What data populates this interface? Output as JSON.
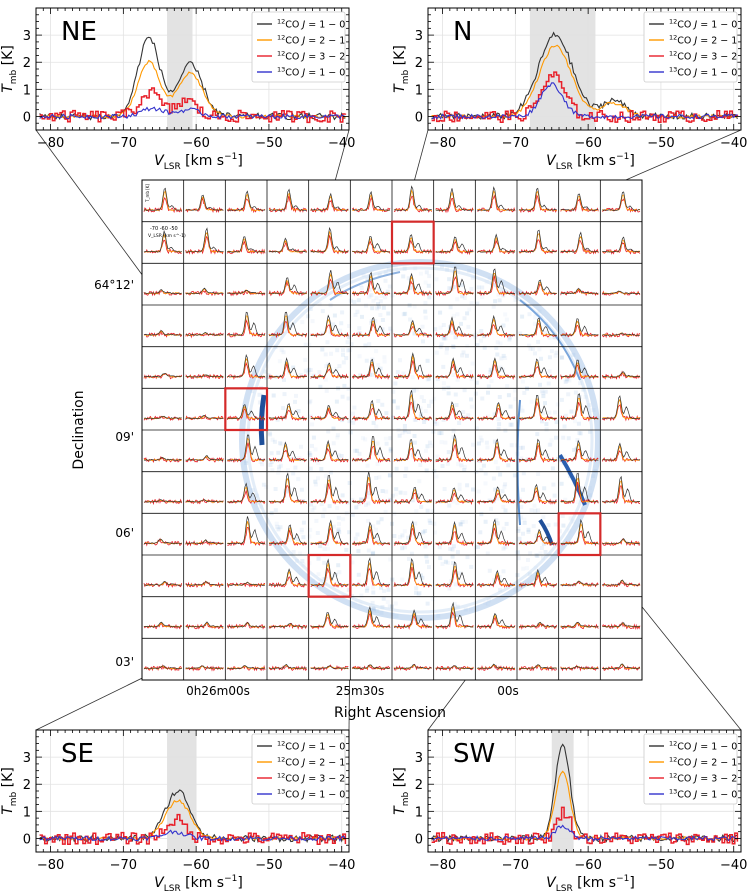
{
  "figure": {
    "xlabel": "Right Ascension",
    "ylabel": "Declination"
  },
  "chart_data": [
    {
      "type": "line",
      "panel": "NE",
      "title": "NE",
      "xlabel": "V_LSR [km s^-1]",
      "ylabel": "T_mb [K]",
      "xlim": [
        -82,
        -39
      ],
      "ylim": [
        -0.5,
        4.0
      ],
      "xticks": [
        -80,
        -70,
        -60,
        -50,
        -40
      ],
      "yticks": [
        0,
        1,
        2,
        3
      ],
      "shaded_range": [
        -64,
        -60.5
      ],
      "series": [
        {
          "name": "12CO J=1-0",
          "color": "#333333",
          "peaks": [
            {
              "v": -66.5,
              "t": 2.9,
              "w": 1.5
            },
            {
              "v": -60.8,
              "t": 1.9,
              "w": 1.7
            }
          ]
        },
        {
          "name": "12CO J=2-1",
          "color": "#ff9900",
          "peaks": [
            {
              "v": -66.5,
              "t": 2.0,
              "w": 1.5
            },
            {
              "v": -60.8,
              "t": 1.6,
              "w": 1.7
            }
          ]
        },
        {
          "name": "12CO J=3-2",
          "color": "#e8202a",
          "peaks": [
            {
              "v": -66.5,
              "t": 0.9,
              "w": 1.4
            },
            {
              "v": -61.5,
              "t": 0.6,
              "w": 1.3
            }
          ]
        },
        {
          "name": "13CO J=1-0",
          "color": "#3333cc",
          "peaks": [
            {
              "v": -66,
              "t": 0.3,
              "w": 1.5
            },
            {
              "v": -61,
              "t": 0.25,
              "w": 1.5
            }
          ]
        }
      ]
    },
    {
      "type": "line",
      "panel": "N",
      "title": "N",
      "xlabel": "V_LSR [km s^-1]",
      "ylabel": "T_mb [K]",
      "xlim": [
        -82,
        -39
      ],
      "ylim": [
        -0.5,
        4.0
      ],
      "xticks": [
        -80,
        -70,
        -60,
        -50,
        -40
      ],
      "yticks": [
        0,
        1,
        2,
        3
      ],
      "shaded_range": [
        -68,
        -59
      ],
      "series": [
        {
          "name": "12CO J=1-0",
          "color": "#333333",
          "peaks": [
            {
              "v": -64.5,
              "t": 3.0,
              "w": 2.3
            },
            {
              "v": -56.5,
              "t": 0.6,
              "w": 1.6
            }
          ]
        },
        {
          "name": "12CO J=2-1",
          "color": "#ff9900",
          "peaks": [
            {
              "v": -64.5,
              "t": 2.6,
              "w": 2.2
            },
            {
              "v": -56.5,
              "t": 0.5,
              "w": 1.6
            }
          ]
        },
        {
          "name": "12CO J=3-2",
          "color": "#e8202a",
          "peaks": [
            {
              "v": -65,
              "t": 1.5,
              "w": 1.6
            }
          ]
        },
        {
          "name": "13CO J=1-0",
          "color": "#3333cc",
          "peaks": [
            {
              "v": -65,
              "t": 1.2,
              "w": 1.5
            }
          ]
        }
      ]
    },
    {
      "type": "line",
      "panel": "SE",
      "title": "SE",
      "xlabel": "V_LSR [km s^-1]",
      "ylabel": "T_mb [K]",
      "xlim": [
        -82,
        -39
      ],
      "ylim": [
        -0.5,
        4.0
      ],
      "xticks": [
        -80,
        -70,
        -60,
        -50,
        -40
      ],
      "yticks": [
        0,
        1,
        2,
        3
      ],
      "shaded_range": [
        -64,
        -60
      ],
      "series": [
        {
          "name": "12CO J=1-0",
          "color": "#333333",
          "peaks": [
            {
              "v": -62.5,
              "t": 1.75,
              "w": 1.7
            }
          ]
        },
        {
          "name": "12CO J=2-1",
          "color": "#ff9900",
          "peaks": [
            {
              "v": -62.5,
              "t": 1.4,
              "w": 1.7
            }
          ]
        },
        {
          "name": "12CO J=3-2",
          "color": "#e8202a",
          "peaks": [
            {
              "v": -63,
              "t": 0.7,
              "w": 1.3
            }
          ]
        },
        {
          "name": "13CO J=1-0",
          "color": "#3333cc",
          "peaks": [
            {
              "v": -63,
              "t": 0.25,
              "w": 1.5
            }
          ]
        }
      ]
    },
    {
      "type": "line",
      "panel": "SW",
      "title": "SW",
      "xlabel": "V_LSR [km s^-1]",
      "ylabel": "T_mb [K]",
      "xlim": [
        -82,
        -39
      ],
      "ylim": [
        -0.5,
        4.0
      ],
      "xticks": [
        -80,
        -70,
        -60,
        -50,
        -40
      ],
      "yticks": [
        0,
        1,
        2,
        3
      ],
      "shaded_range": [
        -65,
        -62
      ],
      "series": [
        {
          "name": "12CO J=1-0",
          "color": "#333333",
          "peaks": [
            {
              "v": -63.5,
              "t": 3.5,
              "w": 1.0
            }
          ]
        },
        {
          "name": "12CO J=2-1",
          "color": "#ff9900",
          "peaks": [
            {
              "v": -63.5,
              "t": 2.5,
              "w": 1.0
            }
          ]
        },
        {
          "name": "12CO J=3-2",
          "color": "#e8202a",
          "peaks": [
            {
              "v": -63.5,
              "t": 1.0,
              "w": 0.9
            }
          ]
        },
        {
          "name": "13CO J=1-0",
          "color": "#3333cc",
          "peaks": [
            {
              "v": -63.5,
              "t": 0.45,
              "w": 1.0
            }
          ]
        }
      ]
    },
    {
      "type": "heatmap",
      "panel": "map",
      "description_grid": {
        "rows": 12,
        "cols": 12
      },
      "highlighted_cells": [
        {
          "label": "N",
          "row": 1,
          "col": 6
        },
        {
          "label": "NE",
          "row": 5,
          "col": 2
        },
        {
          "label": "SW",
          "row": 8,
          "col": 10
        },
        {
          "label": "SE",
          "row": 9,
          "col": 4
        }
      ],
      "x_tick_labels": [
        "0h26m00s",
        "25m30s",
        "00s"
      ],
      "y_tick_labels": [
        "64°12'",
        "09'",
        "06'",
        "03'"
      ],
      "inset_ylabel": "T_mb [K]",
      "inset_xlabel": "V_LSR (km s^-1)",
      "inset_xticks": "-70 -60 -50"
    }
  ]
}
